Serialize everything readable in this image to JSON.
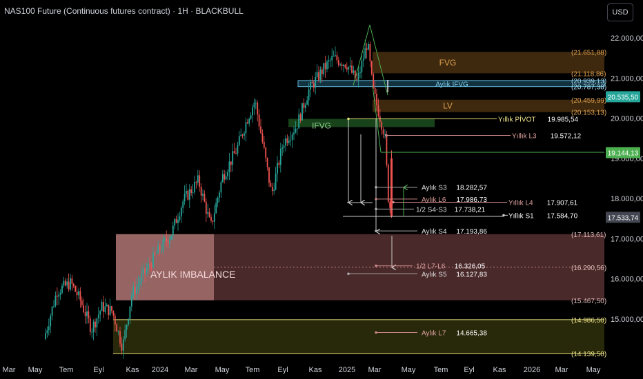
{
  "header": {
    "title": "NAS100 Future (Continuous futures contract) · 1H · BLACKBULL",
    "currency_button": "USD"
  },
  "chart_data": {
    "type": "candlestick",
    "title": "NAS100 Future (Continuous futures contract) · 1H · BLACKBULL",
    "x_axis": {
      "tick_labels": [
        "Mar",
        "May",
        "Tem",
        "Eyl",
        "Kas",
        "2024",
        "Mar",
        "May",
        "Tem",
        "Eyl",
        "Kas",
        "2025",
        "Mar",
        "May",
        "Tem",
        "Eyl",
        "Kas",
        "2026",
        "Mar",
        "May"
      ],
      "range": [
        "2023-03",
        "2026-05"
      ]
    },
    "y_axis": {
      "tick_labels": [
        "22.000,00",
        "21.000,00",
        "20.000,00",
        "19.000,00",
        "18.000,00",
        "17.000,00",
        "16.000,00",
        "15.000,00"
      ],
      "range": [
        13850,
        22450
      ]
    },
    "current_price": "20.535,50",
    "price_labels": [
      {
        "text": "20.535,50",
        "value": 20535.5,
        "color": "#26a69a"
      },
      {
        "text": "19.144,13",
        "value": 19144.13,
        "color": "#4caf50"
      },
      {
        "text": "17.533,74",
        "value": 17533.74,
        "color": "#434651"
      }
    ],
    "zones": [
      {
        "name": "FVG",
        "top": 21651.88,
        "bottom": 21118.86,
        "top_label": "(21.651,88)",
        "bottom_label": "(21.118,86)",
        "color": "#8a5a1e"
      },
      {
        "name": "Aylık IFVG",
        "top": 20939.13,
        "bottom": 20787.38,
        "top_label": "(20.939,13)",
        "bottom_label": "(20.787,38)",
        "color": "#5fb3d6"
      },
      {
        "name": "LV",
        "top": 20459.99,
        "bottom": 20153.13,
        "top_label": "(20.459,99)",
        "bottom_label": "(20.153,13)",
        "color": "#8a5a1e"
      },
      {
        "name": "IFVG",
        "top": 19985.54,
        "bottom": 19780,
        "color": "#2e7d32"
      },
      {
        "name": "AYLIK IMBALANCE",
        "top": 17113.61,
        "bottom": 15467.5,
        "top_label": "(17.113,61)",
        "bottom_label": "(15.467,50)",
        "mid_label": "(16.290,56)",
        "mid": 16290.56,
        "color": "#b76b6b"
      },
      {
        "name": "",
        "top": 14986.5,
        "bottom": 14139.5,
        "top_label": "(14.986,50)",
        "bottom_label": "(14.139,50)",
        "color": "#3b3b10"
      }
    ],
    "levels": [
      {
        "name": "Yıllık PİVOT",
        "value": 19985.54,
        "value_label": "19.985,54"
      },
      {
        "name": "Yıllık L3",
        "value": 19572.12,
        "value_label": "19.572,12"
      },
      {
        "name": "Aylık S3",
        "value": 18282.57,
        "value_label": "18.282,57"
      },
      {
        "name": "Aylık L6",
        "value": 17986.73,
        "value_label": "17.986,73"
      },
      {
        "name": "Yıllık L4",
        "value": 17907.61,
        "value_label": "17.907,61"
      },
      {
        "name": "1/2 S4-S3",
        "value": 17738.21,
        "value_label": "17.738,21"
      },
      {
        "name": "Yıllık S1",
        "value": 17584.7,
        "value_label": "17.584,70"
      },
      {
        "name": "Aylık S4",
        "value": 17193.86,
        "value_label": "17.193,86"
      },
      {
        "name": "1/2 L7-L6",
        "value": 16326.05,
        "value_label": "16.326,05"
      },
      {
        "name": "Aylık S5",
        "value": 16127.83,
        "value_label": "16.127,83"
      },
      {
        "name": "Aylık L7",
        "value": 14665.38,
        "value_label": "14.665,38"
      }
    ],
    "colors": {
      "up": "#26a69a",
      "down": "#ef5350",
      "background": "#000000"
    }
  }
}
